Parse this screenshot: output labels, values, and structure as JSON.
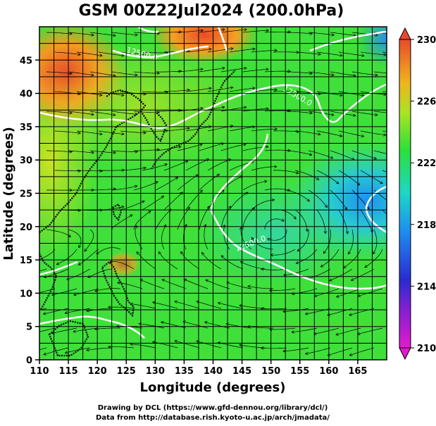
{
  "title": "GSM 00Z22Jul2024 (200.0hPa)",
  "xlabel": "Longitude (degrees)",
  "ylabel": "Latitude  (degrees)",
  "credit_line1": "Drawing by DCL (https://www.gfd-dennou.org/library/dcl/)",
  "credit_line2": "Data from http://database.rish.kyoto-u.ac.jp/arch/jmadata/",
  "contour_labels": [
    "12500.0",
    "12500.0",
    "12500.0"
  ],
  "chart_data": {
    "type": "heatmap",
    "description_field": "temperature-like scalar with streamlines, 200hPa",
    "xlim": [
      110,
      170
    ],
    "ylim": [
      0,
      50
    ],
    "xticks": [
      "110",
      "115",
      "120",
      "125",
      "130",
      "135",
      "140",
      "145",
      "150",
      "155",
      "160",
      "165"
    ],
    "yticks": [
      "0",
      "5",
      "10",
      "15",
      "20",
      "25",
      "30",
      "35",
      "40",
      "45"
    ],
    "colorbar": {
      "min": 210,
      "max": 230,
      "ticks": [
        "210",
        "214",
        "218",
        "222",
        "226",
        "230"
      ],
      "colors": [
        "#e11ad0",
        "#3b1fc7",
        "#1e7bea",
        "#27d3c9",
        "#2be03a",
        "#b7e21e",
        "#f2a11e",
        "#e84a2a"
      ]
    },
    "grid": true
  }
}
